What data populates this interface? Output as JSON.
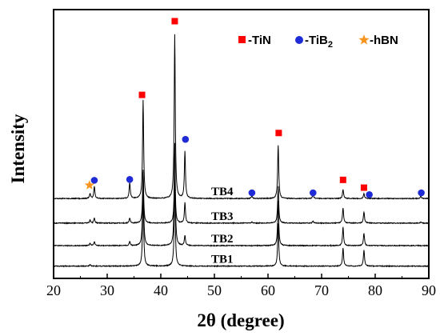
{
  "chart_data": {
    "type": "line",
    "xlabel": "2θ (degree)",
    "ylabel": "Intensity",
    "xlim": [
      20,
      90
    ],
    "xticks": [
      "20",
      "30",
      "40",
      "50",
      "60",
      "70",
      "80",
      "90"
    ],
    "grid": false,
    "legend": {
      "placement": "top-right",
      "entries": [
        {
          "label": "-TiN",
          "marker": "square",
          "color": "#ff0000"
        },
        {
          "label": "-TiB",
          "sub": "2",
          "marker": "circle",
          "color": "#1f2bd6"
        },
        {
          "label": "-hBN",
          "marker": "star",
          "color": "#f7941d"
        }
      ]
    },
    "series": [
      {
        "name": "TB1",
        "baseline": 0.06,
        "noise": 0.004,
        "peaks": [
          {
            "x": 26.8,
            "h": 0.008
          },
          {
            "x": 36.7,
            "h": 0.37
          },
          {
            "x": 42.6,
            "h": 0.42
          },
          {
            "x": 61.9,
            "h": 0.21
          },
          {
            "x": 74.0,
            "h": 0.09
          },
          {
            "x": 77.9,
            "h": 0.08
          }
        ]
      },
      {
        "name": "TB2",
        "baseline": 0.16,
        "noise": 0.004,
        "peaks": [
          {
            "x": 26.8,
            "h": 0.012
          },
          {
            "x": 27.6,
            "h": 0.02
          },
          {
            "x": 34.2,
            "h": 0.02
          },
          {
            "x": 36.7,
            "h": 0.37
          },
          {
            "x": 42.6,
            "h": 0.5
          },
          {
            "x": 44.5,
            "h": 0.05
          },
          {
            "x": 61.9,
            "h": 0.22
          },
          {
            "x": 74.0,
            "h": 0.09
          },
          {
            "x": 77.9,
            "h": 0.06
          }
        ]
      },
      {
        "name": "TB3",
        "baseline": 0.27,
        "noise": 0.004,
        "peaks": [
          {
            "x": 26.8,
            "h": 0.015
          },
          {
            "x": 27.6,
            "h": 0.025
          },
          {
            "x": 34.2,
            "h": 0.025
          },
          {
            "x": 36.7,
            "h": 0.25
          },
          {
            "x": 42.6,
            "h": 0.3
          },
          {
            "x": 44.5,
            "h": 0.1
          },
          {
            "x": 57.0,
            "h": 0.005
          },
          {
            "x": 61.9,
            "h": 0.18
          },
          {
            "x": 68.4,
            "h": 0.01
          },
          {
            "x": 74.0,
            "h": 0.075
          },
          {
            "x": 77.9,
            "h": 0.055
          },
          {
            "x": 88.5,
            "h": 0.005
          }
        ]
      },
      {
        "name": "TB4",
        "baseline": 0.39,
        "noise": 0.004,
        "peaks": [
          {
            "x": 26.8,
            "h": 0.025
          },
          {
            "x": 27.6,
            "h": 0.06
          },
          {
            "x": 34.2,
            "h": 0.08
          },
          {
            "x": 36.7,
            "h": 0.48
          },
          {
            "x": 42.6,
            "h": 0.8
          },
          {
            "x": 44.5,
            "h": 0.23
          },
          {
            "x": 57.0,
            "h": 0.012
          },
          {
            "x": 61.9,
            "h": 0.26
          },
          {
            "x": 68.4,
            "h": 0.02
          },
          {
            "x": 74.0,
            "h": 0.045
          },
          {
            "x": 77.9,
            "h": 0.025
          },
          {
            "x": 88.5,
            "h": 0.012
          }
        ]
      }
    ],
    "markers": [
      {
        "phase": "hBN",
        "x": 26.7,
        "y": 0.455
      },
      {
        "phase": "TiB2",
        "x": 27.6,
        "y": 0.479
      },
      {
        "phase": "TiB2",
        "x": 34.2,
        "y": 0.483
      },
      {
        "phase": "TiN",
        "x": 36.5,
        "y": 0.896
      },
      {
        "phase": "TiN",
        "x": 42.6,
        "y": 1.256
      },
      {
        "phase": "TiB2",
        "x": 44.6,
        "y": 0.679
      },
      {
        "phase": "TiB2",
        "x": 57.0,
        "y": 0.418
      },
      {
        "phase": "TiN",
        "x": 62.0,
        "y": 0.71
      },
      {
        "phase": "TiB2",
        "x": 68.4,
        "y": 0.418
      },
      {
        "phase": "TiN",
        "x": 74.0,
        "y": 0.481
      },
      {
        "phase": "TiN",
        "x": 77.9,
        "y": 0.443
      },
      {
        "phase": "TiB2",
        "x": 78.9,
        "y": 0.409
      },
      {
        "phase": "TiB2",
        "x": 88.6,
        "y": 0.418
      }
    ]
  }
}
